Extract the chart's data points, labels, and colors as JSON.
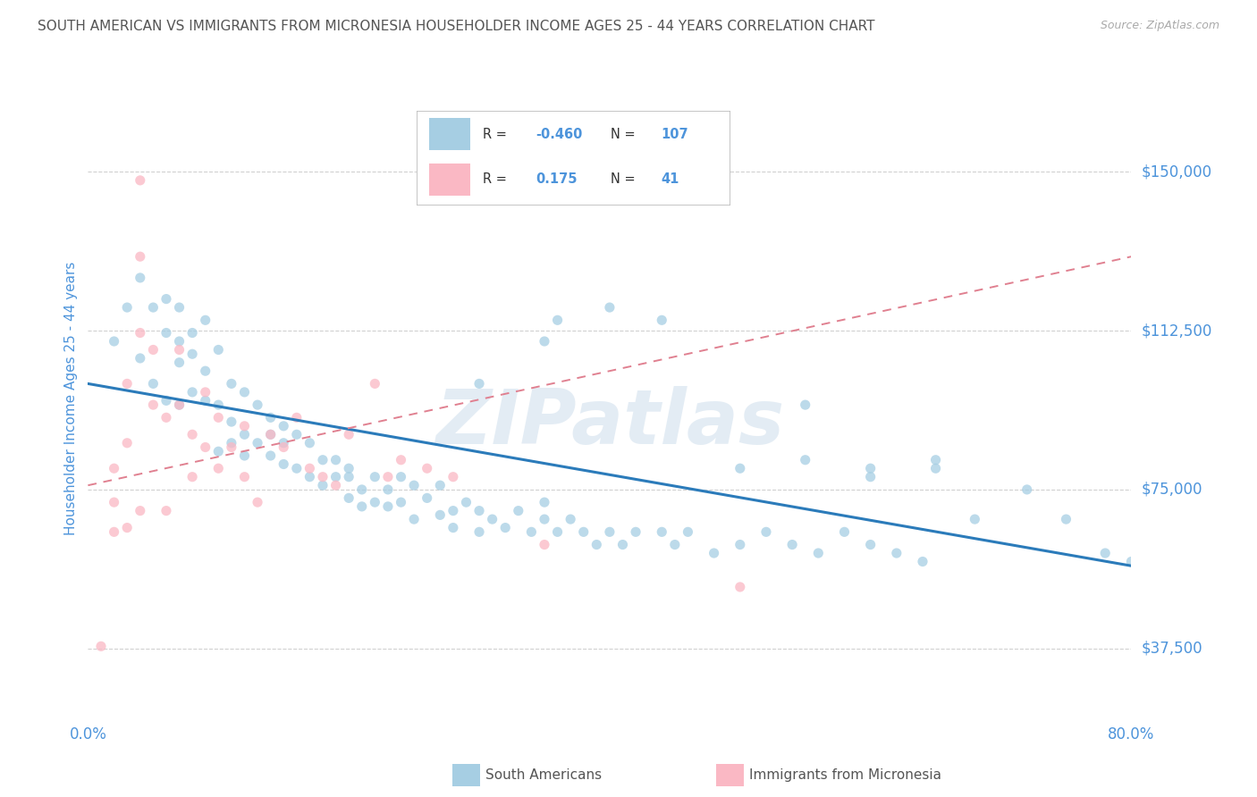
{
  "title": "SOUTH AMERICAN VS IMMIGRANTS FROM MICRONESIA HOUSEHOLDER INCOME AGES 25 - 44 YEARS CORRELATION CHART",
  "source": "Source: ZipAtlas.com",
  "ylabel": "Householder Income Ages 25 - 44 years",
  "xlim": [
    0.0,
    0.8
  ],
  "ylim": [
    25000,
    168000
  ],
  "yticks": [
    37500,
    75000,
    112500,
    150000
  ],
  "ytick_labels": [
    "$37,500",
    "$75,000",
    "$112,500",
    "$150,000"
  ],
  "watermark": "ZIPatlas",
  "blue_R": "-0.460",
  "blue_N": "107",
  "pink_R": "0.175",
  "pink_N": "41",
  "blue_dot_color": "#a6cee3",
  "pink_dot_color": "#fab8c4",
  "blue_line_color": "#2b7bba",
  "pink_line_color": "#e08090",
  "label_color": "#4d94db",
  "grid_color": "#d0d0d0",
  "title_color": "#555555",
  "source_color": "#aaaaaa",
  "legend_text_color": "#4d94db",
  "blue_trend_x": [
    0.0,
    0.8
  ],
  "blue_trend_y": [
    100000,
    57000
  ],
  "pink_trend_x": [
    0.0,
    0.8
  ],
  "pink_trend_y": [
    76000,
    130000
  ],
  "blue_scatter_x": [
    0.02,
    0.03,
    0.04,
    0.04,
    0.05,
    0.05,
    0.06,
    0.06,
    0.06,
    0.07,
    0.07,
    0.07,
    0.07,
    0.08,
    0.08,
    0.08,
    0.09,
    0.09,
    0.09,
    0.1,
    0.1,
    0.1,
    0.11,
    0.11,
    0.11,
    0.12,
    0.12,
    0.12,
    0.13,
    0.13,
    0.14,
    0.14,
    0.14,
    0.15,
    0.15,
    0.15,
    0.16,
    0.16,
    0.17,
    0.17,
    0.18,
    0.18,
    0.19,
    0.19,
    0.2,
    0.2,
    0.2,
    0.21,
    0.21,
    0.22,
    0.22,
    0.23,
    0.23,
    0.24,
    0.24,
    0.25,
    0.25,
    0.26,
    0.27,
    0.27,
    0.28,
    0.28,
    0.29,
    0.3,
    0.3,
    0.31,
    0.32,
    0.33,
    0.34,
    0.35,
    0.35,
    0.36,
    0.37,
    0.38,
    0.39,
    0.4,
    0.41,
    0.42,
    0.44,
    0.45,
    0.46,
    0.48,
    0.5,
    0.52,
    0.54,
    0.56,
    0.58,
    0.6,
    0.62,
    0.64,
    0.36,
    0.4,
    0.44,
    0.3,
    0.35,
    0.5,
    0.55,
    0.6,
    0.65,
    0.55,
    0.6,
    0.65,
    0.68,
    0.72,
    0.75,
    0.78,
    0.8
  ],
  "blue_scatter_y": [
    110000,
    118000,
    106000,
    125000,
    118000,
    100000,
    112000,
    96000,
    120000,
    110000,
    118000,
    95000,
    105000,
    112000,
    98000,
    107000,
    115000,
    96000,
    103000,
    108000,
    95000,
    84000,
    100000,
    91000,
    86000,
    98000,
    88000,
    83000,
    95000,
    86000,
    92000,
    83000,
    88000,
    90000,
    81000,
    86000,
    88000,
    80000,
    86000,
    78000,
    82000,
    76000,
    82000,
    78000,
    80000,
    73000,
    78000,
    75000,
    71000,
    78000,
    72000,
    75000,
    71000,
    78000,
    72000,
    76000,
    68000,
    73000,
    69000,
    76000,
    70000,
    66000,
    72000,
    70000,
    65000,
    68000,
    66000,
    70000,
    65000,
    68000,
    72000,
    65000,
    68000,
    65000,
    62000,
    65000,
    62000,
    65000,
    65000,
    62000,
    65000,
    60000,
    62000,
    65000,
    62000,
    60000,
    65000,
    62000,
    60000,
    58000,
    115000,
    118000,
    115000,
    100000,
    110000,
    80000,
    82000,
    78000,
    80000,
    95000,
    80000,
    82000,
    68000,
    75000,
    68000,
    60000,
    58000
  ],
  "pink_scatter_x": [
    0.01,
    0.02,
    0.02,
    0.03,
    0.03,
    0.04,
    0.04,
    0.04,
    0.05,
    0.05,
    0.06,
    0.06,
    0.07,
    0.07,
    0.08,
    0.08,
    0.09,
    0.09,
    0.1,
    0.1,
    0.11,
    0.12,
    0.12,
    0.13,
    0.14,
    0.15,
    0.16,
    0.17,
    0.18,
    0.19,
    0.2,
    0.22,
    0.23,
    0.24,
    0.26,
    0.28,
    0.35,
    0.5,
    0.02,
    0.03,
    0.04
  ],
  "pink_scatter_y": [
    38000,
    72000,
    80000,
    100000,
    86000,
    130000,
    112000,
    148000,
    95000,
    108000,
    70000,
    92000,
    108000,
    95000,
    78000,
    88000,
    85000,
    98000,
    80000,
    92000,
    85000,
    90000,
    78000,
    72000,
    88000,
    85000,
    92000,
    80000,
    78000,
    76000,
    88000,
    100000,
    78000,
    82000,
    80000,
    78000,
    62000,
    52000,
    65000,
    66000,
    70000
  ]
}
